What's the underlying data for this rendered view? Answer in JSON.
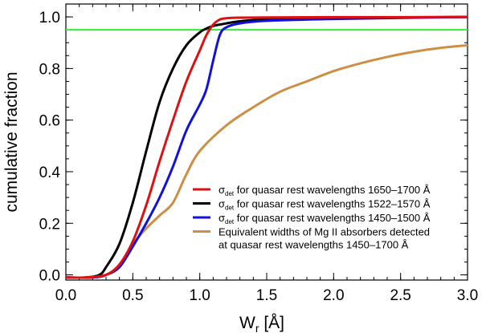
{
  "chart_data": {
    "type": "line",
    "xlabel_main": "W",
    "xlabel_sub": "r",
    "xlabel_unit": " [Å]",
    "ylabel": "cumulative fraction",
    "xlim": [
      0.0,
      3.0
    ],
    "ylim": [
      -0.02,
      1.05
    ],
    "x_ticks": [
      0.0,
      0.5,
      1.0,
      1.5,
      2.0,
      2.5,
      3.0
    ],
    "x_tick_labels": [
      "0.0",
      "0.5",
      "1.0",
      "1.5",
      "2.0",
      "2.5",
      "3.0"
    ],
    "y_ticks": [
      0.0,
      0.2,
      0.4,
      0.6,
      0.8,
      1.0
    ],
    "y_tick_labels": [
      "0.0",
      "0.2",
      "0.4",
      "0.6",
      "0.8",
      "1.0"
    ],
    "reference_line": {
      "y": 0.95,
      "color": "#33ee33"
    },
    "series": [
      {
        "name": "sigma-det-1650-1700",
        "color": "#dd1111",
        "legend_symbol": "σ",
        "legend_sub": "det",
        "legend_text": " for quasar rest wavelengths 1650–1700 Å",
        "x": [
          0.0,
          0.15,
          0.3,
          0.4,
          0.5,
          0.6,
          0.7,
          0.8,
          0.9,
          1.0,
          1.05,
          1.1,
          1.15,
          1.2,
          1.3,
          1.5,
          2.0,
          2.5,
          3.0
        ],
        "y": [
          -0.01,
          -0.01,
          0.0,
          0.04,
          0.13,
          0.27,
          0.44,
          0.6,
          0.75,
          0.87,
          0.93,
          0.97,
          0.99,
          0.995,
          0.997,
          0.998,
          0.999,
          0.999,
          1.0
        ]
      },
      {
        "name": "sigma-det-1522-1570",
        "color": "#000000",
        "legend_symbol": "σ",
        "legend_sub": "det",
        "legend_text": " for quasar rest wavelengths 1522–1570 Å",
        "x": [
          0.0,
          0.15,
          0.25,
          0.3,
          0.4,
          0.5,
          0.6,
          0.7,
          0.8,
          0.9,
          1.0,
          1.05,
          1.1,
          1.2,
          1.3,
          1.5,
          2.0,
          3.0
        ],
        "y": [
          -0.01,
          -0.01,
          0.0,
          0.03,
          0.12,
          0.28,
          0.48,
          0.67,
          0.8,
          0.89,
          0.94,
          0.955,
          0.965,
          0.975,
          0.983,
          0.99,
          0.995,
          1.0
        ]
      },
      {
        "name": "sigma-det-1450-1500",
        "color": "#1111dd",
        "legend_symbol": "σ",
        "legend_sub": "det",
        "legend_text": " for quasar rest wavelengths 1450–1500 Å",
        "x": [
          0.0,
          0.2,
          0.3,
          0.4,
          0.5,
          0.6,
          0.7,
          0.8,
          0.9,
          1.0,
          1.05,
          1.1,
          1.15,
          1.2,
          1.3,
          1.5,
          2.0,
          3.0
        ],
        "y": [
          -0.01,
          -0.01,
          0.0,
          0.03,
          0.11,
          0.2,
          0.3,
          0.42,
          0.56,
          0.66,
          0.72,
          0.83,
          0.93,
          0.96,
          0.975,
          0.985,
          0.992,
          1.0
        ]
      },
      {
        "name": "mgii-equivalent-widths",
        "color": "#cc8f44",
        "legend_symbol": "",
        "legend_sub": "",
        "legend_text": "Equivalent widths of Mg II absorbers detected",
        "legend_text2": "at quasar rest wavelengths 1450–1700 Å",
        "x": [
          0.0,
          0.2,
          0.3,
          0.4,
          0.5,
          0.6,
          0.7,
          0.8,
          0.9,
          1.0,
          1.2,
          1.4,
          1.6,
          1.8,
          2.0,
          2.2,
          2.4,
          2.6,
          2.8,
          3.0
        ],
        "y": [
          -0.01,
          -0.01,
          0.0,
          0.04,
          0.12,
          0.18,
          0.23,
          0.28,
          0.39,
          0.48,
          0.58,
          0.65,
          0.71,
          0.75,
          0.79,
          0.82,
          0.845,
          0.865,
          0.88,
          0.89
        ]
      }
    ]
  }
}
